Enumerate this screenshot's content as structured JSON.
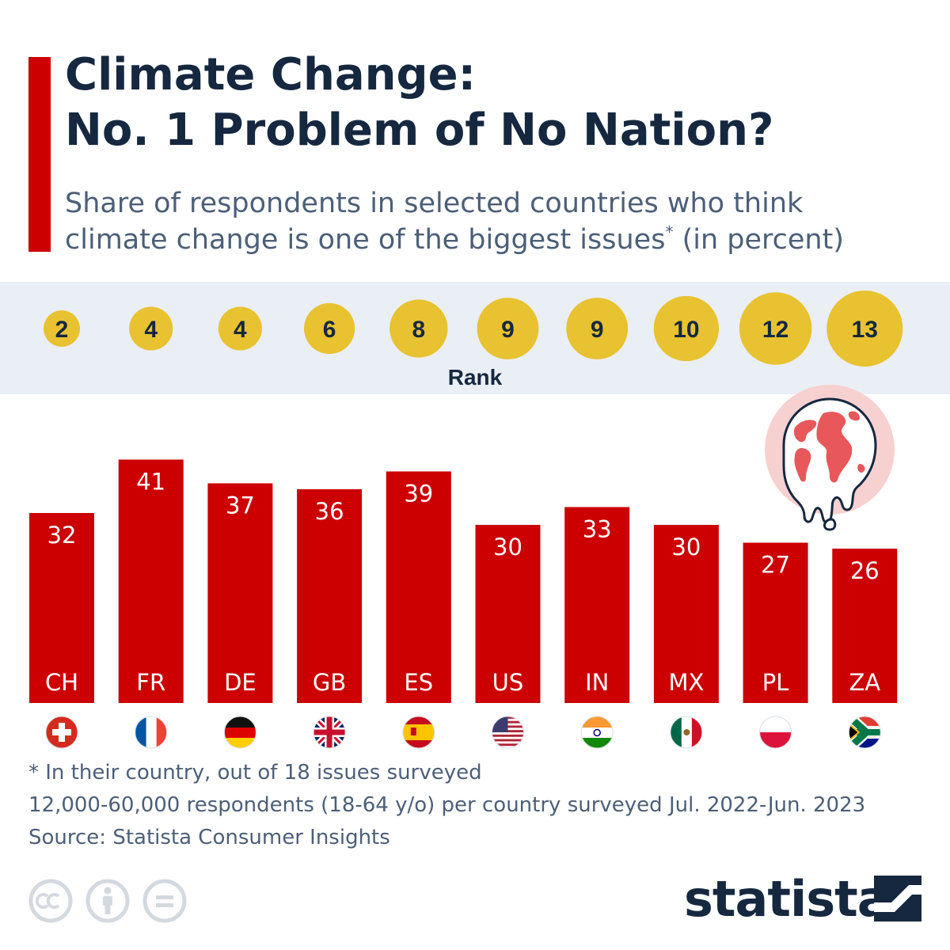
{
  "header": {
    "title_line1": "Climate Change:",
    "title_line2": "No. 1 Problem of No Nation?",
    "subtitle_line1": "Share of respondents in selected countries who think",
    "subtitle_line2_text": "climate change is one of the biggest issues",
    "subtitle_line2_mark": "*",
    "subtitle_line2_tail": " (in percent)"
  },
  "chart_data": {
    "type": "bar",
    "categories": [
      "CH",
      "FR",
      "DE",
      "GB",
      "ES",
      "US",
      "IN",
      "MX",
      "PL",
      "ZA"
    ],
    "values": [
      32,
      41,
      37,
      36,
      39,
      30,
      33,
      30,
      27,
      26
    ],
    "ranks": [
      2,
      4,
      4,
      6,
      8,
      9,
      9,
      10,
      12,
      13
    ],
    "rank_label": "Rank",
    "flags": [
      "Switzerland",
      "France",
      "Germany",
      "United Kingdom",
      "Spain",
      "United States",
      "India",
      "Mexico",
      "Poland",
      "South Africa"
    ],
    "bar_color": "#cc0000",
    "rank_circle_color": "#e8c230"
  },
  "notes": {
    "footnote": "* In their country, out of 18 issues surveyed",
    "method": "12,000-60,000 respondents (18-64 y/o) per country surveyed Jul. 2022-Jun. 2023",
    "source": "Source: Statista Consumer Insights"
  },
  "icons": {
    "melting_globe": "melting-globe-icon",
    "license": [
      "creative-commons-icon",
      "attribution-icon",
      "no-derivatives-icon"
    ]
  },
  "brand": {
    "name": "statista"
  },
  "colors": {
    "title": "#152840",
    "text": "#4c5f78",
    "accent": "#cc0000"
  }
}
